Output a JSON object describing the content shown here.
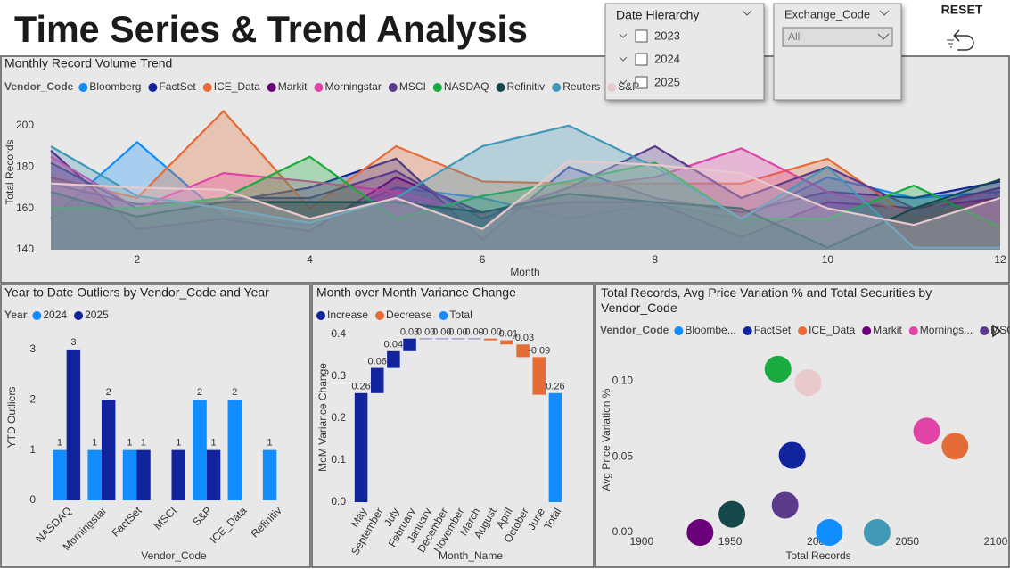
{
  "header": {
    "title": "Time Series & Trend Analysis",
    "reset": "RESET"
  },
  "slicers": [
    {
      "title": "Date Hierarchy",
      "items": [
        "2023",
        "2024",
        "2025"
      ]
    },
    {
      "title": "Exchange_Code",
      "selected": "All"
    }
  ],
  "chart_data": [
    {
      "type": "area",
      "title": "Monthly Record Volume Trend",
      "legend_title": "Vendor_Code",
      "x_label": "Month",
      "y_label": "Total Records",
      "x": [
        1,
        2,
        3,
        4,
        5,
        6,
        7,
        8,
        9,
        10,
        11,
        12
      ],
      "xlim": [
        0.7,
        12
      ],
      "xticks": [
        2,
        4,
        6,
        8,
        10,
        12
      ],
      "ylim": [
        140,
        215
      ],
      "yticks": [
        140,
        160,
        180,
        200
      ],
      "grid": false,
      "series": [
        {
          "name": "Bloomberg",
          "color": "#118DFF",
          "values": [
            155,
            192,
            156,
            152,
            170,
            165,
            155,
            162,
            155,
            175,
            165,
            168
          ]
        },
        {
          "name": "FactSet",
          "color": "#12239E",
          "values": [
            172,
            162,
            163,
            170,
            184,
            145,
            180,
            165,
            158,
            168,
            165,
            173
          ]
        },
        {
          "name": "ICE_Data",
          "color": "#E66C37",
          "values": [
            175,
            165,
            207,
            160,
            190,
            173,
            172,
            172,
            172,
            184,
            155,
            165
          ]
        },
        {
          "name": "Markit",
          "color": "#6B007B",
          "values": [
            188,
            150,
            155,
            149,
            175,
            158,
            163,
            163,
            146,
            163,
            160,
            165
          ]
        },
        {
          "name": "Morningstar",
          "color": "#E044A7",
          "values": [
            185,
            160,
            177,
            173,
            168,
            157,
            170,
            175,
            189,
            168,
            158,
            170
          ]
        },
        {
          "name": "MSCI",
          "color": "#5B3A8C",
          "values": [
            182,
            160,
            165,
            165,
            178,
            155,
            170,
            190,
            165,
            180,
            160,
            170
          ]
        },
        {
          "name": "NASDAQ",
          "color": "#1AAB40",
          "values": [
            160,
            160,
            165,
            185,
            155,
            166,
            173,
            182,
            155,
            155,
            171,
            151
          ]
        },
        {
          "name": "Refinitiv",
          "color": "#15484A",
          "values": [
            168,
            156,
            163,
            163,
            163,
            158,
            167,
            163,
            160,
            141,
            160,
            174
          ]
        },
        {
          "name": "Reuters",
          "color": "#4299B7",
          "values": [
            190,
            166,
            160,
            153,
            165,
            190,
            200,
            180,
            155,
            180,
            141,
            141
          ]
        },
        {
          "name": "S&P",
          "color": "#E8C9CC",
          "values": [
            172,
            170,
            169,
            155,
            165,
            150,
            183,
            181,
            177,
            160,
            152,
            165
          ]
        }
      ]
    },
    {
      "type": "bar",
      "title": "Year to Date Outliers by Vendor_Code and Year",
      "legend_title": "Year",
      "x_label": "Vendor_Code",
      "y_label": "YTD Outliers",
      "categories": [
        "NASDAQ",
        "Morningstar",
        "FactSet",
        "MSCI",
        "S&P",
        "ICE_Data",
        "Refinitiv"
      ],
      "ylim": [
        0,
        3.3
      ],
      "yticks": [
        0,
        1,
        2,
        3
      ],
      "grid": false,
      "series": [
        {
          "name": "2024",
          "color": "#118DFF",
          "values": [
            1,
            1,
            1,
            null,
            2,
            2,
            1
          ]
        },
        {
          "name": "2025",
          "color": "#12239E",
          "values": [
            3,
            2,
            1,
            1,
            1,
            null,
            null
          ]
        }
      ]
    },
    {
      "type": "waterfall",
      "title": "Month over Month Variance Change",
      "x_label": "Month_Name",
      "y_label": "MoM Variance Change",
      "legend": [
        {
          "name": "Increase",
          "color": "#12239E"
        },
        {
          "name": "Decrease",
          "color": "#E66C37"
        },
        {
          "name": "Total",
          "color": "#118DFF"
        }
      ],
      "categories": [
        "May",
        "September",
        "July",
        "February",
        "January",
        "December",
        "November",
        "March",
        "August",
        "April",
        "October",
        "June",
        "Total"
      ],
      "values": [
        0.26,
        0.06,
        0.04,
        0.03,
        0,
        0,
        0,
        0,
        -0.004,
        -0.01,
        -0.03,
        -0.09,
        0.26
      ],
      "value_labels": [
        "0.26",
        "0.06",
        "0.04",
        "0.03",
        "0.00",
        "0.00",
        "0.00",
        "0.00",
        "-0.00",
        "-0.01",
        "-0.03",
        "-0.09",
        "0.26"
      ],
      "ylim": [
        0,
        0.4
      ],
      "yticks": [
        {
          "value": 0,
          "label": "0.0"
        },
        {
          "value": 0.1,
          "label": "0.1"
        },
        {
          "value": 0.2,
          "label": "0.2"
        },
        {
          "value": 0.3,
          "label": "0.3"
        },
        {
          "value": 0.4,
          "label": "0.4"
        }
      ],
      "grid": false
    },
    {
      "type": "scatter",
      "title": "Total Records, Avg Price Variation % and Total Securities by Vendor_Code",
      "legend_title": "Vendor_Code",
      "legend": [
        {
          "name": "Bloombe...",
          "color": "#118DFF"
        },
        {
          "name": "FactSet",
          "color": "#12239E"
        },
        {
          "name": "ICE_Data",
          "color": "#E66C37"
        },
        {
          "name": "Markit",
          "color": "#6B007B"
        },
        {
          "name": "Mornings...",
          "color": "#E044A7"
        },
        {
          "name": "MSCI",
          "color": "#5B3A8C"
        }
      ],
      "x_label": "Total Records",
      "y_label": "Avg Price Variation %",
      "x": [
        2006,
        1985,
        2077,
        1933,
        2061,
        1981,
        1977,
        1951,
        2033,
        1994
      ],
      "values": [
        0,
        0.051,
        0.057,
        0,
        0.067,
        0.018,
        0.108,
        0.012,
        0,
        0.099
      ],
      "colors": [
        "#118DFF",
        "#12239E",
        "#E66C37",
        "#6B007B",
        "#E044A7",
        "#5B3A8C",
        "#1AAB40",
        "#15484A",
        "#4299B7",
        "#E8C9CC"
      ],
      "xlim": [
        1885,
        2100
      ],
      "xticks": [
        1900,
        1950,
        2000,
        2050,
        2100
      ],
      "ylim": [
        0,
        0.125
      ],
      "yticks": [
        {
          "value": 0,
          "label": "0.00"
        },
        {
          "value": 0.05,
          "label": "0.05"
        },
        {
          "value": 0.1,
          "label": "0.10"
        }
      ],
      "grid": false
    }
  ]
}
